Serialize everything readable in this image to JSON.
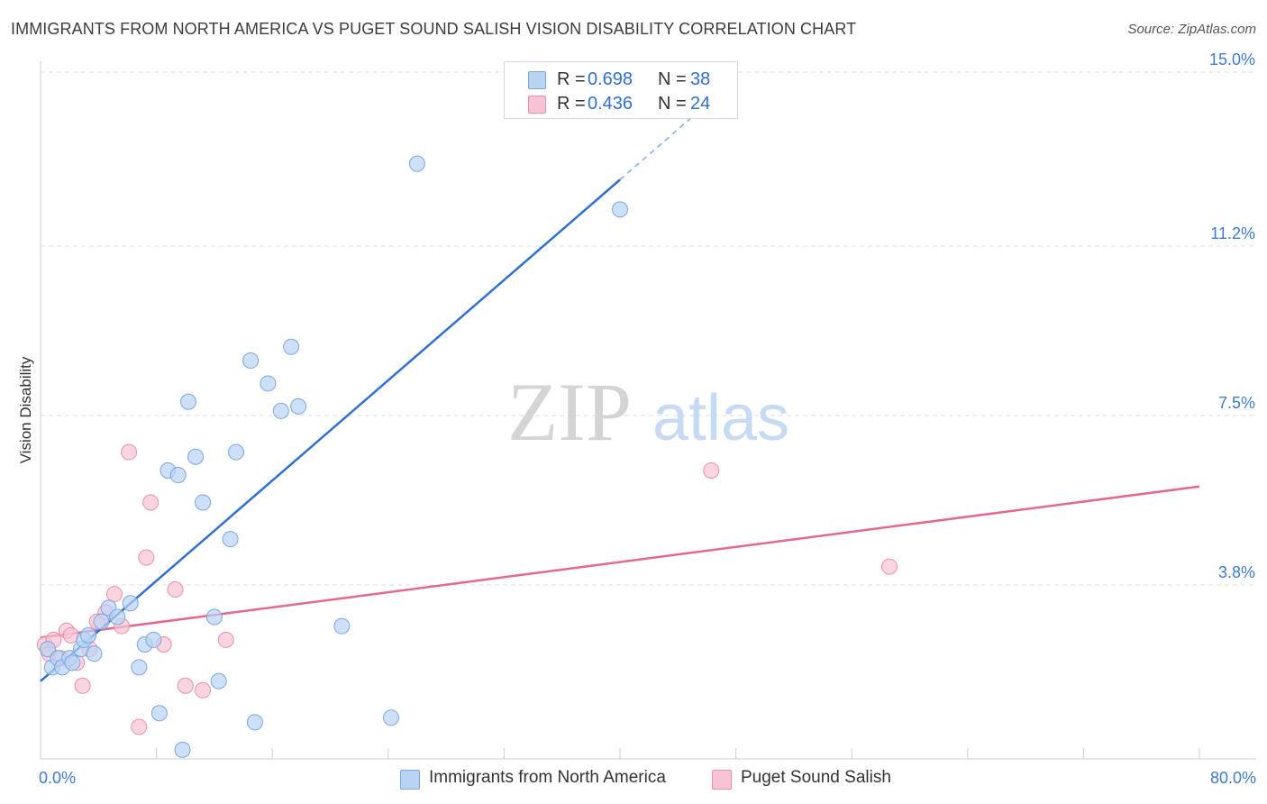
{
  "title": "IMMIGRANTS FROM NORTH AMERICA VS PUGET SOUND SALISH VISION DISABILITY CORRELATION CHART",
  "source": "Source: ZipAtlas.com",
  "watermark": {
    "zip": "ZIP",
    "atlas": "atlas"
  },
  "colors": {
    "blue_fill": "#b9d3f3",
    "blue_stroke": "#7aa6e0",
    "blue_line": "#2f6fd0",
    "pink_fill": "#f8c3d3",
    "pink_stroke": "#e891ac",
    "pink_line": "#e2688f",
    "grid": "#dddddd",
    "tick_label": "#3d7bd6"
  },
  "legend": {
    "rows": [
      {
        "r_label": "R = ",
        "r_value": "0.698",
        "n_label": "N = ",
        "n_value": "38"
      },
      {
        "r_label": "R = ",
        "r_value": "0.436",
        "n_label": "N = ",
        "n_value": "24"
      }
    ]
  },
  "bottom_legend": {
    "items": [
      "Immigrants from North America",
      "Puget Sound Salish"
    ]
  },
  "chart_data": {
    "type": "scatter",
    "title": "IMMIGRANTS FROM NORTH AMERICA VS PUGET SOUND SALISH VISION DISABILITY CORRELATION CHART",
    "xlabel": "",
    "ylabel": "Vision Disability",
    "xlim": [
      0,
      80
    ],
    "ylim": [
      0,
      15
    ],
    "x_tick_labels": [
      "0.0%",
      "80.0%"
    ],
    "y_ticks": [
      {
        "value": 3.8,
        "label": "3.8%"
      },
      {
        "value": 7.5,
        "label": "7.5%"
      },
      {
        "value": 11.2,
        "label": "11.2%"
      },
      {
        "value": 15.0,
        "label": "15.0%"
      }
    ],
    "series": [
      {
        "name": "Immigrants from North America",
        "R": 0.698,
        "N": 38,
        "points": [
          [
            0.5,
            2.4
          ],
          [
            0.8,
            2.0
          ],
          [
            1.2,
            2.2
          ],
          [
            1.5,
            2.0
          ],
          [
            2.0,
            2.2
          ],
          [
            2.2,
            2.1
          ],
          [
            2.8,
            2.4
          ],
          [
            3.0,
            2.6
          ],
          [
            3.3,
            2.7
          ],
          [
            3.7,
            2.3
          ],
          [
            4.2,
            3.0
          ],
          [
            4.7,
            3.3
          ],
          [
            5.3,
            3.1
          ],
          [
            6.2,
            3.4
          ],
          [
            6.8,
            2.0
          ],
          [
            7.2,
            2.5
          ],
          [
            7.8,
            2.6
          ],
          [
            8.2,
            1.0
          ],
          [
            8.8,
            6.3
          ],
          [
            9.5,
            6.2
          ],
          [
            9.8,
            0.2
          ],
          [
            10.2,
            7.8
          ],
          [
            10.7,
            6.6
          ],
          [
            11.2,
            5.6
          ],
          [
            12.0,
            3.1
          ],
          [
            12.3,
            1.7
          ],
          [
            13.1,
            4.8
          ],
          [
            13.5,
            6.7
          ],
          [
            14.5,
            8.7
          ],
          [
            14.8,
            0.8
          ],
          [
            15.7,
            8.2
          ],
          [
            16.6,
            7.6
          ],
          [
            17.3,
            9.0
          ],
          [
            17.8,
            7.7
          ],
          [
            20.8,
            2.9
          ],
          [
            24.2,
            0.9
          ],
          [
            26.0,
            13.0
          ],
          [
            40.0,
            12.0
          ]
        ],
        "trend": {
          "x_start": 0,
          "y_start": 1.7,
          "x_end": 40,
          "y_end": 12.65,
          "dashed_to_x": 48,
          "dashed_to_y": 14.85
        }
      },
      {
        "name": "Puget Sound Salish",
        "R": 0.436,
        "N": 24,
        "points": [
          [
            0.3,
            2.5
          ],
          [
            0.6,
            2.3
          ],
          [
            0.9,
            2.6
          ],
          [
            1.4,
            2.2
          ],
          [
            1.8,
            2.8
          ],
          [
            2.1,
            2.7
          ],
          [
            2.5,
            2.1
          ],
          [
            2.9,
            1.6
          ],
          [
            3.4,
            2.4
          ],
          [
            3.9,
            3.0
          ],
          [
            4.5,
            3.2
          ],
          [
            5.1,
            3.6
          ],
          [
            5.6,
            2.9
          ],
          [
            6.1,
            6.7
          ],
          [
            6.8,
            0.7
          ],
          [
            7.3,
            4.4
          ],
          [
            7.6,
            5.6
          ],
          [
            8.5,
            2.5
          ],
          [
            9.3,
            3.7
          ],
          [
            10.0,
            1.6
          ],
          [
            11.2,
            1.5
          ],
          [
            12.8,
            2.6
          ],
          [
            46.3,
            6.3
          ],
          [
            58.6,
            4.2
          ]
        ],
        "trend": {
          "x_start": 0,
          "y_start": 2.65,
          "x_end": 80,
          "y_end": 5.95
        }
      }
    ]
  }
}
